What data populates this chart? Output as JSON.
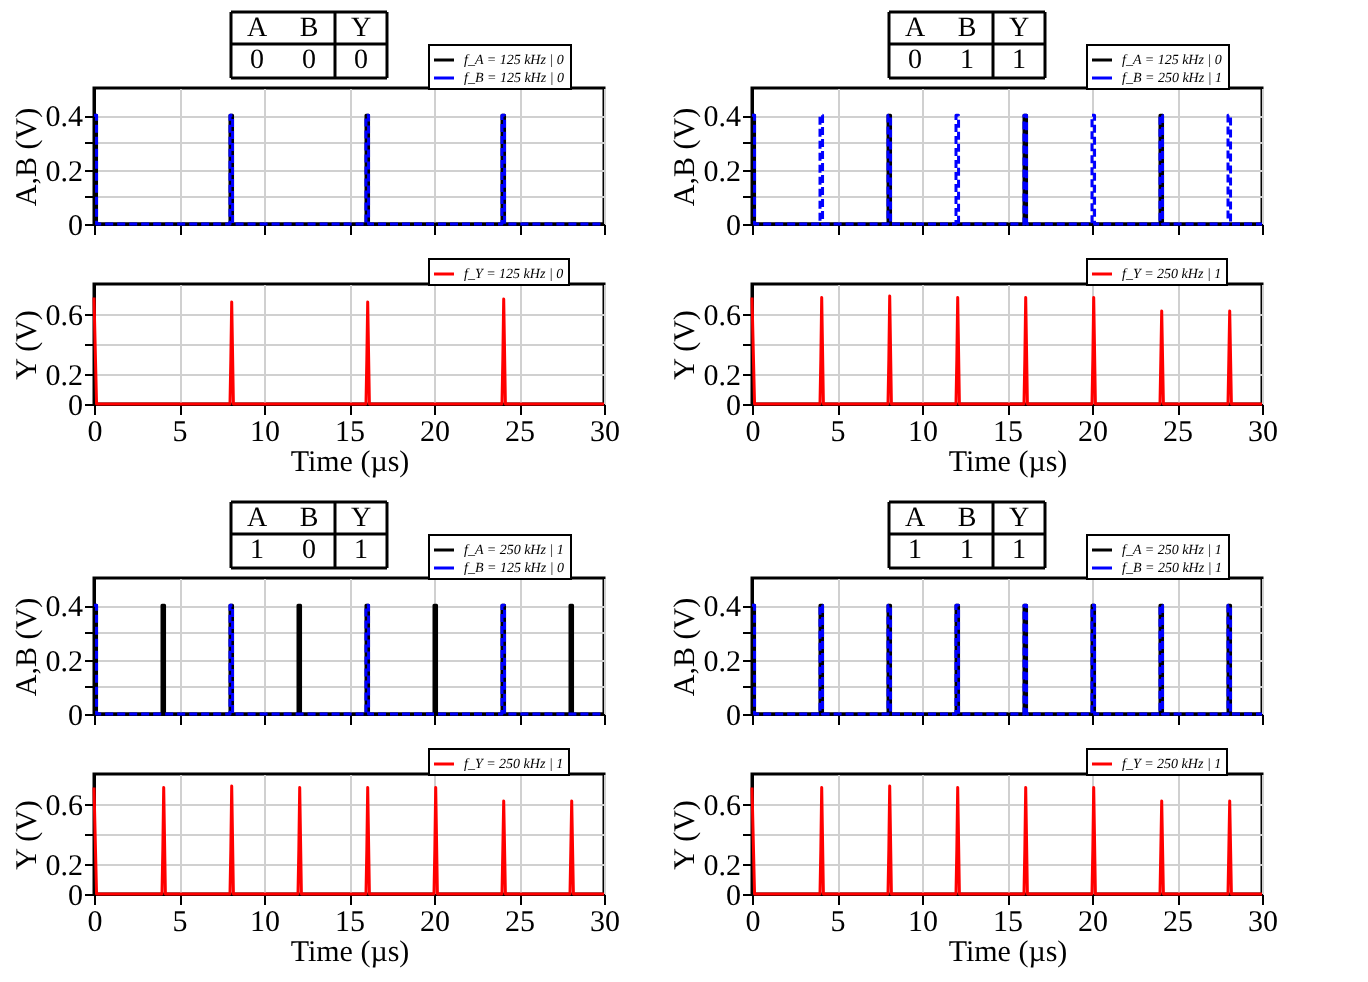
{
  "chart_data": [
    {
      "type": "line",
      "annotations": [
        "A",
        "B",
        "Y",
        "0",
        "0",
        "0"
      ],
      "ylabel": "A,B (V)",
      "xlim": [
        0,
        30
      ],
      "xticks": [
        0,
        5,
        10,
        15,
        20,
        25,
        30
      ],
      "ylim": [
        0,
        0.5
      ],
      "yticks": [
        0,
        {
          "value": 0.1,
          "label": null
        },
        0.2,
        {
          "value": 0.3,
          "label": null
        },
        0.4
      ],
      "grid": true,
      "legend": "top right",
      "tick_labels": "y",
      "series": [
        {
          "name": "f_A = 125 kHz | 0",
          "color": "#000000",
          "line_style": "solid",
          "x": [
            0,
            0.15,
            0.15,
            8,
            8,
            8.15,
            8.15,
            16,
            16,
            16.15,
            16.15,
            24,
            24,
            24.15,
            24.15,
            30
          ],
          "values": [
            0.4,
            0.4,
            0,
            0,
            0.4,
            0.4,
            0,
            0,
            0.4,
            0.4,
            0,
            0,
            0.4,
            0.4,
            0,
            0
          ]
        },
        {
          "name": "f_B = 125 kHz | 0",
          "color": "#0000ff",
          "line_style": "dashed",
          "x": [
            0,
            0.15,
            0.15,
            8,
            8,
            8.15,
            8.15,
            16,
            16,
            16.15,
            16.15,
            24,
            24,
            24.15,
            24.15,
            30
          ],
          "values": [
            0.4,
            0.4,
            0,
            0,
            0.4,
            0.4,
            0,
            0,
            0.4,
            0.4,
            0,
            0,
            0.4,
            0.4,
            0,
            0
          ]
        }
      ]
    },
    {
      "type": "line",
      "xlabel": "Time (µs)",
      "ylabel": "Y (V)",
      "xlim": [
        0,
        30
      ],
      "xticks": [
        0,
        5,
        10,
        15,
        20,
        25,
        30
      ],
      "ylim": [
        0,
        0.8
      ],
      "yticks": [
        0,
        0.2,
        {
          "value": 0.4,
          "label": null
        },
        0.6
      ],
      "grid": true,
      "legend": "top right",
      "series": [
        {
          "name": "f_Y = 125 kHz | 0",
          "color": "#ff0000",
          "line_style": "solid",
          "x": [
            0,
            0.15,
            8,
            8.05,
            8.1,
            8.2,
            16,
            16.05,
            16.1,
            16.2,
            24,
            24.05,
            24.1,
            24.2,
            30
          ],
          "values": [
            0.71,
            0,
            0,
            0.3,
            0.68,
            0,
            0,
            0.3,
            0.68,
            0,
            0,
            0.3,
            0.7,
            0,
            0
          ]
        }
      ]
    },
    {
      "type": "line",
      "annotations": [
        "A",
        "B",
        "Y",
        "0",
        "1",
        "1"
      ],
      "ylabel": "A,B (V)",
      "xlim": [
        0,
        30
      ],
      "xticks": [
        0,
        5,
        10,
        15,
        20,
        25,
        30
      ],
      "ylim": [
        0,
        0.5
      ],
      "yticks": [
        0,
        {
          "value": 0.1,
          "label": null
        },
        0.2,
        {
          "value": 0.3,
          "label": null
        },
        0.4
      ],
      "grid": true,
      "legend": "top right",
      "tick_labels": "y",
      "series": [
        {
          "name": "f_A = 125 kHz | 0",
          "color": "#000000",
          "line_style": "solid",
          "x": [
            0,
            0.15,
            0.15,
            8,
            8,
            8.15,
            8.15,
            16,
            16,
            16.15,
            16.15,
            24,
            24,
            24.15,
            24.15,
            30
          ],
          "values": [
            0.4,
            0.4,
            0,
            0,
            0.4,
            0.4,
            0,
            0,
            0.4,
            0.4,
            0,
            0,
            0.4,
            0.4,
            0,
            0
          ]
        },
        {
          "name": "f_B = 250 kHz | 1",
          "color": "#0000ff",
          "line_style": "dashed",
          "x": [
            0,
            0.15,
            0.15,
            4,
            4,
            4.15,
            4.15,
            8,
            8,
            8.15,
            8.15,
            12,
            12,
            12.15,
            12.15,
            16,
            16,
            16.15,
            16.15,
            20,
            20,
            20.15,
            20.15,
            24,
            24,
            24.15,
            24.15,
            28,
            28,
            28.15,
            28.15,
            30
          ],
          "values": [
            0.4,
            0.4,
            0,
            0,
            0.4,
            0.4,
            0,
            0,
            0.4,
            0.4,
            0,
            0,
            0.4,
            0.4,
            0,
            0,
            0.4,
            0.4,
            0,
            0,
            0.4,
            0.4,
            0,
            0,
            0.4,
            0.4,
            0,
            0,
            0.4,
            0.4,
            0,
            0
          ]
        }
      ]
    },
    {
      "type": "line",
      "xlabel": "Time (µs)",
      "ylabel": "Y (V)",
      "xlim": [
        0,
        30
      ],
      "xticks": [
        0,
        5,
        10,
        15,
        20,
        25,
        30
      ],
      "ylim": [
        0,
        0.8
      ],
      "yticks": [
        0,
        0.2,
        {
          "value": 0.4,
          "label": null
        },
        0.6
      ],
      "grid": true,
      "legend": "top right",
      "series": [
        {
          "name": "f_Y = 250 kHz | 1",
          "color": "#ff0000",
          "line_style": "solid",
          "x": [
            0,
            0.15,
            4,
            4.05,
            4.1,
            4.2,
            8,
            8.05,
            8.1,
            8.2,
            12,
            12.05,
            12.1,
            12.2,
            16,
            16.05,
            16.1,
            16.2,
            20,
            20.05,
            20.1,
            20.2,
            24,
            24.05,
            24.1,
            24.2,
            28,
            28.05,
            28.1,
            28.2,
            30
          ],
          "values": [
            0.71,
            0,
            0,
            0.3,
            0.71,
            0,
            0,
            0.3,
            0.72,
            0,
            0,
            0.3,
            0.71,
            0,
            0,
            0.3,
            0.71,
            0,
            0,
            0.3,
            0.71,
            0,
            0,
            0.3,
            0.62,
            0,
            0,
            0.3,
            0.62,
            0,
            0
          ]
        }
      ]
    },
    {
      "type": "line",
      "annotations": [
        "A",
        "B",
        "Y",
        "1",
        "0",
        "1"
      ],
      "ylabel": "A,B (V)",
      "xlim": [
        0,
        30
      ],
      "xticks": [
        0,
        5,
        10,
        15,
        20,
        25,
        30
      ],
      "ylim": [
        0,
        0.5
      ],
      "yticks": [
        0,
        {
          "value": 0.1,
          "label": null
        },
        0.2,
        {
          "value": 0.3,
          "label": null
        },
        0.4
      ],
      "grid": true,
      "legend": "top right",
      "tick_labels": "y",
      "series": [
        {
          "name": "f_A = 250 kHz | 1",
          "color": "#000000",
          "line_style": "solid",
          "x": [
            0,
            0.15,
            0.15,
            4,
            4,
            4.15,
            4.15,
            8,
            8,
            8.15,
            8.15,
            12,
            12,
            12.15,
            12.15,
            16,
            16,
            16.15,
            16.15,
            20,
            20,
            20.15,
            20.15,
            24,
            24,
            24.15,
            24.15,
            28,
            28,
            28.15,
            28.15,
            30
          ],
          "values": [
            0.4,
            0.4,
            0,
            0,
            0.4,
            0.4,
            0,
            0,
            0.4,
            0.4,
            0,
            0,
            0.4,
            0.4,
            0,
            0,
            0.4,
            0.4,
            0,
            0,
            0.4,
            0.4,
            0,
            0,
            0.4,
            0.4,
            0,
            0,
            0.4,
            0.4,
            0,
            0
          ]
        },
        {
          "name": "f_B = 125 kHz | 0",
          "color": "#0000ff",
          "line_style": "dashed",
          "x": [
            0,
            0.15,
            0.15,
            8,
            8,
            8.15,
            8.15,
            16,
            16,
            16.15,
            16.15,
            24,
            24,
            24.15,
            24.15,
            30
          ],
          "values": [
            0.4,
            0.4,
            0,
            0,
            0.4,
            0.4,
            0,
            0,
            0.4,
            0.4,
            0,
            0,
            0.4,
            0.4,
            0,
            0
          ]
        }
      ]
    },
    {
      "type": "line",
      "xlabel": "Time (µs)",
      "ylabel": "Y (V)",
      "xlim": [
        0,
        30
      ],
      "xticks": [
        0,
        5,
        10,
        15,
        20,
        25,
        30
      ],
      "ylim": [
        0,
        0.8
      ],
      "yticks": [
        0,
        0.2,
        {
          "value": 0.4,
          "label": null
        },
        0.6
      ],
      "grid": true,
      "legend": "top right",
      "series": [
        {
          "name": "f_Y = 250 kHz | 1",
          "color": "#ff0000",
          "line_style": "solid",
          "x": [
            0,
            0.15,
            4,
            4.05,
            4.1,
            4.2,
            8,
            8.05,
            8.1,
            8.2,
            12,
            12.05,
            12.1,
            12.2,
            16,
            16.05,
            16.1,
            16.2,
            20,
            20.05,
            20.1,
            20.2,
            24,
            24.05,
            24.1,
            24.2,
            28,
            28.05,
            28.1,
            28.2,
            30
          ],
          "values": [
            0.71,
            0,
            0,
            0.3,
            0.71,
            0,
            0,
            0.3,
            0.72,
            0,
            0,
            0.3,
            0.71,
            0,
            0,
            0.3,
            0.71,
            0,
            0,
            0.3,
            0.71,
            0,
            0,
            0.3,
            0.62,
            0,
            0,
            0.3,
            0.62,
            0,
            0
          ]
        }
      ]
    },
    {
      "type": "line",
      "annotations": [
        "A",
        "B",
        "Y",
        "1",
        "1",
        "1"
      ],
      "ylabel": "A,B (V)",
      "xlim": [
        0,
        30
      ],
      "xticks": [
        0,
        5,
        10,
        15,
        20,
        25,
        30
      ],
      "ylim": [
        0,
        0.5
      ],
      "yticks": [
        0,
        {
          "value": 0.1,
          "label": null
        },
        0.2,
        {
          "value": 0.3,
          "label": null
        },
        0.4
      ],
      "grid": true,
      "legend": "top right",
      "tick_labels": "y",
      "series": [
        {
          "name": "f_A = 250 kHz | 1",
          "color": "#000000",
          "line_style": "solid",
          "x": [
            0,
            0.15,
            0.15,
            4,
            4,
            4.15,
            4.15,
            8,
            8,
            8.15,
            8.15,
            12,
            12,
            12.15,
            12.15,
            16,
            16,
            16.15,
            16.15,
            20,
            20,
            20.15,
            20.15,
            24,
            24,
            24.15,
            24.15,
            28,
            28,
            28.15,
            28.15,
            30
          ],
          "values": [
            0.4,
            0.4,
            0,
            0,
            0.4,
            0.4,
            0,
            0,
            0.4,
            0.4,
            0,
            0,
            0.4,
            0.4,
            0,
            0,
            0.4,
            0.4,
            0,
            0,
            0.4,
            0.4,
            0,
            0,
            0.4,
            0.4,
            0,
            0,
            0.4,
            0.4,
            0,
            0
          ]
        },
        {
          "name": "f_B = 250 kHz | 1",
          "color": "#0000ff",
          "line_style": "dashed",
          "x": [
            0,
            0.15,
            0.15,
            4,
            4,
            4.15,
            4.15,
            8,
            8,
            8.15,
            8.15,
            12,
            12,
            12.15,
            12.15,
            16,
            16,
            16.15,
            16.15,
            20,
            20,
            20.15,
            20.15,
            24,
            24,
            24.15,
            24.15,
            28,
            28,
            28.15,
            28.15,
            30
          ],
          "values": [
            0.4,
            0.4,
            0,
            0,
            0.4,
            0.4,
            0,
            0,
            0.4,
            0.4,
            0,
            0,
            0.4,
            0.4,
            0,
            0,
            0.4,
            0.4,
            0,
            0,
            0.4,
            0.4,
            0,
            0,
            0.4,
            0.4,
            0,
            0,
            0.4,
            0.4,
            0,
            0
          ]
        }
      ]
    },
    {
      "type": "line",
      "xlabel": "Time (µs)",
      "ylabel": "Y (V)",
      "xlim": [
        0,
        30
      ],
      "xticks": [
        0,
        5,
        10,
        15,
        20,
        25,
        30
      ],
      "ylim": [
        0,
        0.8
      ],
      "yticks": [
        0,
        0.2,
        {
          "value": 0.4,
          "label": null
        },
        0.6
      ],
      "grid": true,
      "legend": "top right",
      "series": [
        {
          "name": "f_Y = 250 kHz | 1",
          "color": "#ff0000",
          "line_style": "solid",
          "x": [
            0,
            0.15,
            4,
            4.05,
            4.1,
            4.2,
            8,
            8.05,
            8.1,
            8.2,
            12,
            12.05,
            12.1,
            12.2,
            16,
            16.05,
            16.1,
            16.2,
            20,
            20.05,
            20.1,
            20.2,
            24,
            24.05,
            24.1,
            24.2,
            28,
            28.05,
            28.1,
            28.2,
            30
          ],
          "values": [
            0.71,
            0,
            0,
            0.3,
            0.71,
            0,
            0,
            0.3,
            0.72,
            0,
            0,
            0.3,
            0.71,
            0,
            0,
            0.3,
            0.71,
            0,
            0,
            0.3,
            0.71,
            0,
            0,
            0.3,
            0.62,
            0,
            0,
            0.3,
            0.62,
            0,
            0
          ]
        }
      ]
    }
  ]
}
